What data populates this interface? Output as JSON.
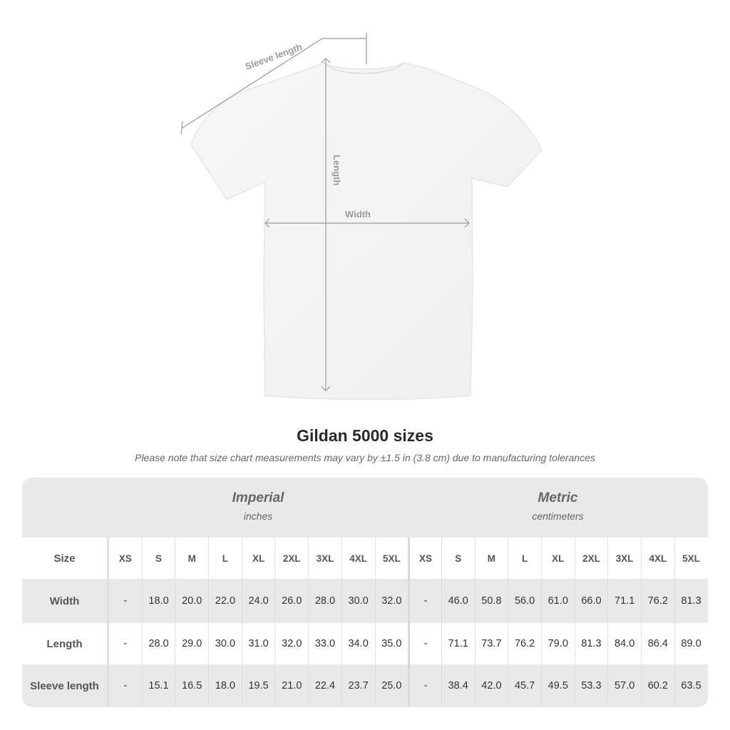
{
  "diagram": {
    "sleeve_label": "Sleeve length",
    "length_label": "Length",
    "width_label": "Width"
  },
  "title": "Gildan 5000 sizes",
  "note": "Please note that size chart measurements may vary by ±1.5 in (3.8 cm) due to manufacturing tolerances",
  "table": {
    "imperial": {
      "title": "Imperial",
      "unit": "inches"
    },
    "metric": {
      "title": "Metric",
      "unit": "centimeters"
    },
    "size_label": "Size",
    "sizes": [
      "XS",
      "S",
      "M",
      "L",
      "XL",
      "2XL",
      "3XL",
      "4XL",
      "5XL",
      "XS",
      "S",
      "M",
      "L",
      "XL",
      "2XL",
      "3XL",
      "4XL",
      "5XL"
    ],
    "rows": [
      {
        "label": "Width",
        "values": [
          "-",
          "18.0",
          "20.0",
          "22.0",
          "24.0",
          "26.0",
          "28.0",
          "30.0",
          "32.0",
          "-",
          "46.0",
          "50.8",
          "56.0",
          "61.0",
          "66.0",
          "71.1",
          "76.2",
          "81.3"
        ]
      },
      {
        "label": "Length",
        "values": [
          "-",
          "28.0",
          "29.0",
          "30.0",
          "31.0",
          "32.0",
          "33.0",
          "34.0",
          "35.0",
          "-",
          "71.1",
          "73.7",
          "76.2",
          "79.0",
          "81.3",
          "84.0",
          "86.4",
          "89.0"
        ]
      },
      {
        "label": "Sleeve length",
        "values": [
          "-",
          "15.1",
          "16.5",
          "18.0",
          "19.5",
          "21.0",
          "22.4",
          "23.7",
          "25.0",
          "-",
          "38.4",
          "42.0",
          "45.7",
          "49.5",
          "53.3",
          "57.0",
          "60.2",
          "63.5"
        ]
      }
    ]
  }
}
